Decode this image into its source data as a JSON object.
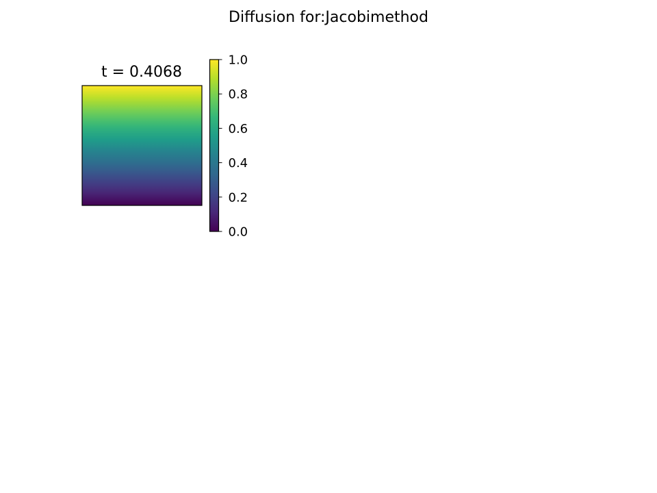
{
  "figure": {
    "title": "Diffusion for:Jacobimethod"
  },
  "chart_data": {
    "type": "heatmap",
    "title": "t = 0.4068",
    "time": 0.4068,
    "xlabel": "",
    "ylabel": "",
    "axes_visible": false,
    "grid": false,
    "colormap": "viridis",
    "clim": [
      0.0,
      1.0
    ],
    "field_profile": {
      "description_axis": "value varies linearly with row; top row high, bottom row low",
      "top_value": 1.0,
      "bottom_value": 0.0,
      "rows": [
        1.0,
        0.95,
        0.9,
        0.85,
        0.8,
        0.75,
        0.7,
        0.65,
        0.6,
        0.55,
        0.5,
        0.45,
        0.4,
        0.35,
        0.3,
        0.25,
        0.2,
        0.15,
        0.1,
        0.05,
        0.0
      ]
    },
    "colorbar": {
      "ticks": [
        0.0,
        0.2,
        0.4,
        0.6,
        0.8,
        1.0
      ],
      "tick_labels": [
        "0.0",
        "0.2",
        "0.4",
        "0.6",
        "0.8",
        "1.0"
      ],
      "placement": "right"
    }
  },
  "colors": {
    "viridis_stops": [
      "#440154",
      "#482878",
      "#3e4989",
      "#31688e",
      "#26828e",
      "#1f9e89",
      "#35b779",
      "#6ece58",
      "#b5de2b",
      "#fde725"
    ]
  }
}
